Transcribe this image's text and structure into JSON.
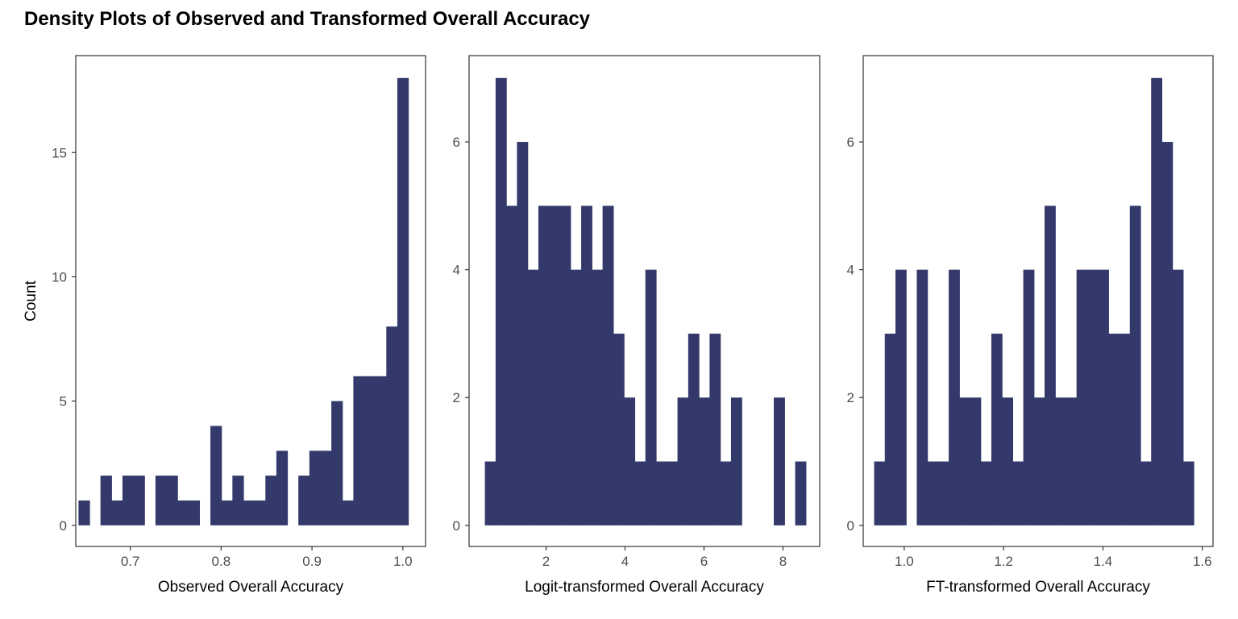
{
  "figure": {
    "title": "Density Plots of Observed and Transformed Overall Accuracy",
    "bar_color": "#333A6B"
  },
  "chart_data": [
    {
      "type": "bar",
      "xlabel": "Observed Overall Accuracy",
      "ylabel": "Count",
      "xlim": [
        0.64,
        1.025
      ],
      "ylim": [
        -0.85,
        18.9
      ],
      "xticks": [
        0.7,
        0.8,
        0.9,
        1.0
      ],
      "xtick_labels": [
        "0.7",
        "0.8",
        "0.9",
        "1.0"
      ],
      "yticks": [
        0,
        5,
        10,
        15
      ],
      "ytick_labels": [
        "0",
        "5",
        "10",
        "15"
      ],
      "bin_start": 0.643,
      "bin_width": 0.0121,
      "values": [
        1,
        0,
        2,
        1,
        2,
        2,
        0,
        2,
        2,
        1,
        1,
        0,
        4,
        1,
        2,
        1,
        1,
        2,
        3,
        0,
        2,
        3,
        3,
        5,
        1,
        6,
        6,
        6,
        8,
        18
      ],
      "grid": false
    },
    {
      "type": "bar",
      "xlabel": "Logit-transformed Overall Accuracy",
      "ylabel": "",
      "xlim": [
        0.05,
        8.93
      ],
      "ylim": [
        -0.33,
        7.35
      ],
      "xticks": [
        2,
        4,
        6,
        8
      ],
      "xtick_labels": [
        "2",
        "4",
        "6",
        "8"
      ],
      "yticks": [
        0,
        2,
        4,
        6
      ],
      "ytick_labels": [
        "0",
        "2",
        "4",
        "6"
      ],
      "bin_start": 0.45,
      "bin_width": 0.271,
      "values": [
        1,
        7,
        5,
        6,
        4,
        5,
        5,
        5,
        4,
        5,
        4,
        5,
        3,
        2,
        1,
        4,
        1,
        1,
        2,
        3,
        2,
        3,
        1,
        2,
        0,
        0,
        0,
        2,
        0,
        1
      ],
      "grid": false
    },
    {
      "type": "bar",
      "xlabel": "FT-transformed Overall Accuracy",
      "ylabel": "",
      "xlim": [
        0.9175,
        1.6215
      ],
      "ylim": [
        -0.33,
        7.35
      ],
      "xticks": [
        1.0,
        1.2,
        1.4,
        1.6
      ],
      "xtick_labels": [
        "1.0",
        "1.2",
        "1.4",
        "1.6"
      ],
      "yticks": [
        0,
        2,
        4,
        6
      ],
      "ytick_labels": [
        "0",
        "2",
        "4",
        "6"
      ],
      "bin_start": 0.9395,
      "bin_width": 0.02144,
      "values": [
        1,
        3,
        4,
        0,
        4,
        1,
        1,
        4,
        2,
        2,
        1,
        3,
        2,
        1,
        4,
        2,
        5,
        2,
        2,
        4,
        4,
        4,
        3,
        3,
        5,
        1,
        7,
        6,
        4,
        1
      ],
      "grid": false
    }
  ]
}
